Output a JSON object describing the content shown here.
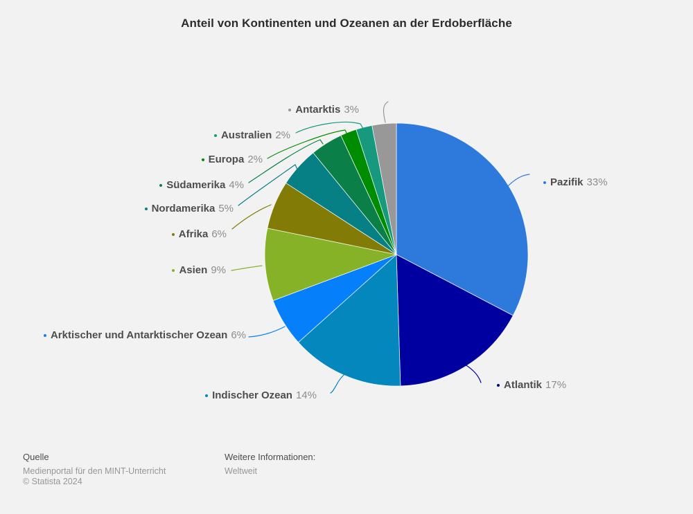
{
  "chart_data": {
    "type": "pie",
    "title": "Anteil von Kontinenten und Ozeanen an der Erdoberfläche",
    "unit": "%",
    "start_angle_deg": 0,
    "direction": "clockwise",
    "legend_position": "callout-labels-around-pie",
    "slices": [
      {
        "label": "Pazifik",
        "value": 33,
        "display": "33%",
        "color": "#2d79dc"
      },
      {
        "label": "Atlantik",
        "value": 17,
        "display": "17%",
        "color": "#0000a0"
      },
      {
        "label": "Indischer Ozean",
        "value": 14,
        "display": "14%",
        "color": "#0387bc"
      },
      {
        "label": "Arktischer und Antarktischer Ozean",
        "value": 6,
        "display": "6%",
        "color": "#0580fa"
      },
      {
        "label": "Asien",
        "value": 9,
        "display": "9%",
        "color": "#85b226"
      },
      {
        "label": "Afrika",
        "value": 6,
        "display": "6%",
        "color": "#827c06"
      },
      {
        "label": "Nordamerika",
        "value": 5,
        "display": "5%",
        "color": "#067f85"
      },
      {
        "label": "Südamerika",
        "value": 4,
        "display": "4%",
        "color": "#0a8048"
      },
      {
        "label": "Europa",
        "value": 2,
        "display": "2%",
        "color": "#008c00"
      },
      {
        "label": "Australien",
        "value": 2,
        "display": "2%",
        "color": "#16997c"
      },
      {
        "label": "Antarktis",
        "value": 3,
        "display": "3%",
        "color": "#989898"
      }
    ]
  },
  "footer": {
    "source_label": "Quelle",
    "source_line1": "Medienportal für den MINT-Unterricht",
    "source_line2": "© Statista 2024",
    "info_label": "Weitere Informationen:",
    "info_value": "Weltweit"
  },
  "colors": {
    "background": "#f2f2f2",
    "label_name": "#4d4d4d",
    "label_value": "#8c8c8c",
    "title_text": "#2b2b2b"
  }
}
